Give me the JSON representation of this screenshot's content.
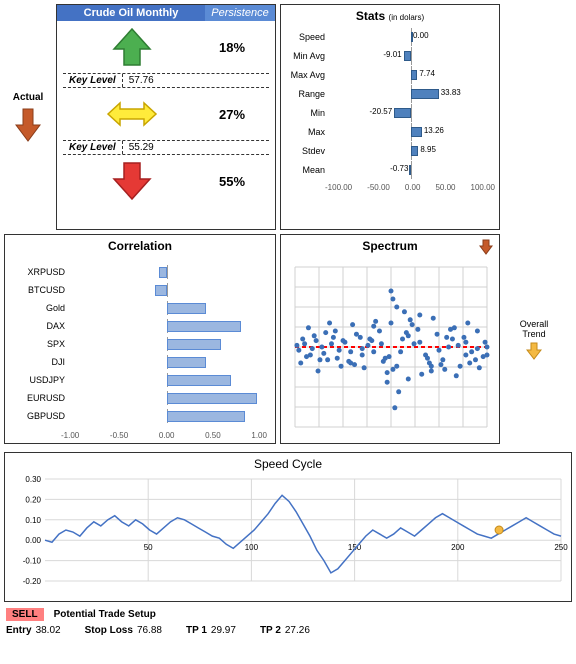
{
  "persistence": {
    "header_left": "Crude Oil Monthly",
    "header_right": "Persistence",
    "up_pct": "18%",
    "mid_pct": "27%",
    "down_pct": "55%",
    "key1_label": "Key Level",
    "key1_val": "57.76",
    "key2_label": "Key Level",
    "key2_val": "55.29",
    "colors": {
      "up": "#4caf50",
      "mid": "#ffeb3b",
      "down": "#e53935",
      "header": "#4472c4"
    }
  },
  "actual": {
    "label": "Actual",
    "arrow_color": "#c55a2a"
  },
  "stats": {
    "title": "Stats",
    "subtitle": "(in dolars)",
    "xmin": -100,
    "xmax": 100,
    "ticks": [
      "-100.00",
      "-50.00",
      "0.00",
      "50.00",
      "100.00"
    ],
    "rows": [
      {
        "label": "Speed",
        "val": 0.0
      },
      {
        "label": "Min Avg",
        "val": -9.01
      },
      {
        "label": "Max Avg",
        "val": 7.74
      },
      {
        "label": "Range",
        "val": 33.83
      },
      {
        "label": "Min",
        "val": -20.57
      },
      {
        "label": "Max",
        "val": 13.26
      },
      {
        "label": "Stdev",
        "val": 8.95
      },
      {
        "label": "Mean",
        "val": -0.73
      }
    ],
    "bar_color": "#4f81bd"
  },
  "correlation": {
    "title": "Correlation",
    "xmin": -1,
    "xmax": 1,
    "ticks": [
      "-1.00",
      "-0.50",
      "0.00",
      "0.50",
      "1.00"
    ],
    "rows": [
      {
        "label": "XRPUSD",
        "val": -0.08
      },
      {
        "label": "BTCUSD",
        "val": -0.12
      },
      {
        "label": "Gold",
        "val": 0.4
      },
      {
        "label": "DAX",
        "val": 0.75
      },
      {
        "label": "SPX",
        "val": 0.55
      },
      {
        "label": "DJI",
        "val": 0.4
      },
      {
        "label": "USDJPY",
        "val": 0.65
      },
      {
        "label": "EURUSD",
        "val": 0.92
      },
      {
        "label": "GBPUSD",
        "val": 0.8
      }
    ],
    "bar_color": "#9bb7e0"
  },
  "spectrum": {
    "title": "Spectrum",
    "arrow_color": "#c55a2a",
    "dash_color": "#ff0000",
    "dot_color": "#3b6fb6",
    "grid_color": "#d0d0d0",
    "points": [
      [
        2,
        52
      ],
      [
        5,
        48
      ],
      [
        8,
        55
      ],
      [
        11,
        46
      ],
      [
        14,
        50
      ],
      [
        17,
        58
      ],
      [
        20,
        44
      ],
      [
        23,
        52
      ],
      [
        26,
        47
      ],
      [
        29,
        60
      ],
      [
        32,
        42
      ],
      [
        35,
        55
      ],
      [
        38,
        49
      ],
      [
        41,
        53
      ],
      [
        44,
        40
      ],
      [
        47,
        57
      ],
      [
        50,
        35
      ],
      [
        51,
        20
      ],
      [
        53,
        62
      ],
      [
        56,
        45
      ],
      [
        59,
        70
      ],
      [
        62,
        48
      ],
      [
        65,
        30
      ],
      [
        68,
        55
      ],
      [
        71,
        65
      ],
      [
        74,
        42
      ],
      [
        77,
        58
      ],
      [
        80,
        50
      ],
      [
        83,
        38
      ],
      [
        86,
        62
      ],
      [
        89,
        47
      ],
      [
        92,
        53
      ],
      [
        95,
        40
      ],
      [
        98,
        56
      ],
      [
        3,
        60
      ],
      [
        7,
        38
      ],
      [
        12,
        65
      ],
      [
        18,
        35
      ],
      [
        24,
        62
      ],
      [
        30,
        36
      ],
      [
        36,
        63
      ],
      [
        42,
        34
      ],
      [
        48,
        66
      ],
      [
        54,
        78
      ],
      [
        60,
        33
      ],
      [
        66,
        67
      ],
      [
        72,
        32
      ],
      [
        78,
        64
      ],
      [
        84,
        68
      ],
      [
        90,
        35
      ],
      [
        96,
        63
      ],
      [
        10,
        43
      ],
      [
        22,
        57
      ],
      [
        34,
        44
      ],
      [
        46,
        59
      ],
      [
        58,
        41
      ],
      [
        70,
        60
      ],
      [
        82,
        45
      ],
      [
        94,
        58
      ],
      [
        6,
        56
      ],
      [
        16,
        41
      ],
      [
        28,
        59
      ],
      [
        40,
        46
      ],
      [
        52,
        88
      ],
      [
        64,
        39
      ],
      [
        76,
        61
      ],
      [
        88,
        44
      ],
      [
        100,
        55
      ],
      [
        15,
        54
      ],
      [
        25,
        46
      ],
      [
        35,
        51
      ],
      [
        45,
        48
      ],
      [
        55,
        53
      ],
      [
        65,
        47
      ],
      [
        75,
        52
      ],
      [
        85,
        49
      ],
      [
        95,
        51
      ],
      [
        4,
        45
      ],
      [
        13,
        58
      ],
      [
        21,
        40
      ],
      [
        31,
        61
      ],
      [
        41,
        37
      ],
      [
        51,
        64
      ],
      [
        61,
        36
      ],
      [
        71,
        62
      ],
      [
        81,
        39
      ],
      [
        91,
        60
      ],
      [
        9,
        51
      ],
      [
        19,
        48
      ],
      [
        29,
        53
      ],
      [
        39,
        45
      ],
      [
        49,
        56
      ],
      [
        59,
        43
      ],
      [
        69,
        57
      ],
      [
        79,
        44
      ],
      [
        89,
        55
      ],
      [
        99,
        47
      ],
      [
        100,
        50
      ],
      [
        1,
        49
      ],
      [
        50,
        15
      ],
      [
        53,
        25
      ],
      [
        48,
        72
      ],
      [
        57,
        28
      ]
    ]
  },
  "overall": {
    "label1": "Overall",
    "label2": "Trend",
    "arrow_color": "#f4b942"
  },
  "speed": {
    "title": "Speed Cycle",
    "xmin": 0,
    "xmax": 250,
    "ymin": -0.2,
    "ymax": 0.3,
    "xticks": [
      "50",
      "100",
      "150",
      "200",
      "250"
    ],
    "yticks": [
      "0.30",
      "0.20",
      "0.10",
      "0.00",
      "-0.10",
      "-0.20"
    ],
    "line_color": "#4472c4",
    "grid_color": "#d8d8d8",
    "marker_color": "#f4b942",
    "marker_x": 220,
    "data": [
      0,
      -0.01,
      0.03,
      0.05,
      0.04,
      0.02,
      0.06,
      0.09,
      0.07,
      0.1,
      0.12,
      0.09,
      0.07,
      0.1,
      0.08,
      0.05,
      0.03,
      0.06,
      0.09,
      0.11,
      0.1,
      0.08,
      0.06,
      0.04,
      0.02,
      0.01,
      -0.02,
      -0.04,
      -0.01,
      0.02,
      0.05,
      0.09,
      0.13,
      0.18,
      0.22,
      0.19,
      0.14,
      0.08,
      0.02,
      -0.05,
      -0.1,
      -0.16,
      -0.14,
      -0.1,
      -0.06,
      -0.02,
      0.02,
      0.05,
      0.03,
      0.01,
      0.03,
      0.06,
      0.04,
      0.02,
      0.05,
      0.08,
      0.11,
      0.13,
      0.11,
      0.09,
      0.07,
      0.05,
      0.03,
      0.02,
      0.01,
      0.03,
      0.05,
      0.07,
      0.09,
      0.11,
      0.09,
      0.07,
      0.05,
      0.03,
      0.02
    ]
  },
  "trade": {
    "action": "SELL",
    "setup_label": "Potential Trade Setup",
    "fields": [
      {
        "label": "Entry",
        "val": "38.02"
      },
      {
        "label": "Stop Loss",
        "val": "76.88"
      },
      {
        "label": "TP 1",
        "val": "29.97"
      },
      {
        "label": "TP 2",
        "val": "27.26"
      }
    ]
  }
}
